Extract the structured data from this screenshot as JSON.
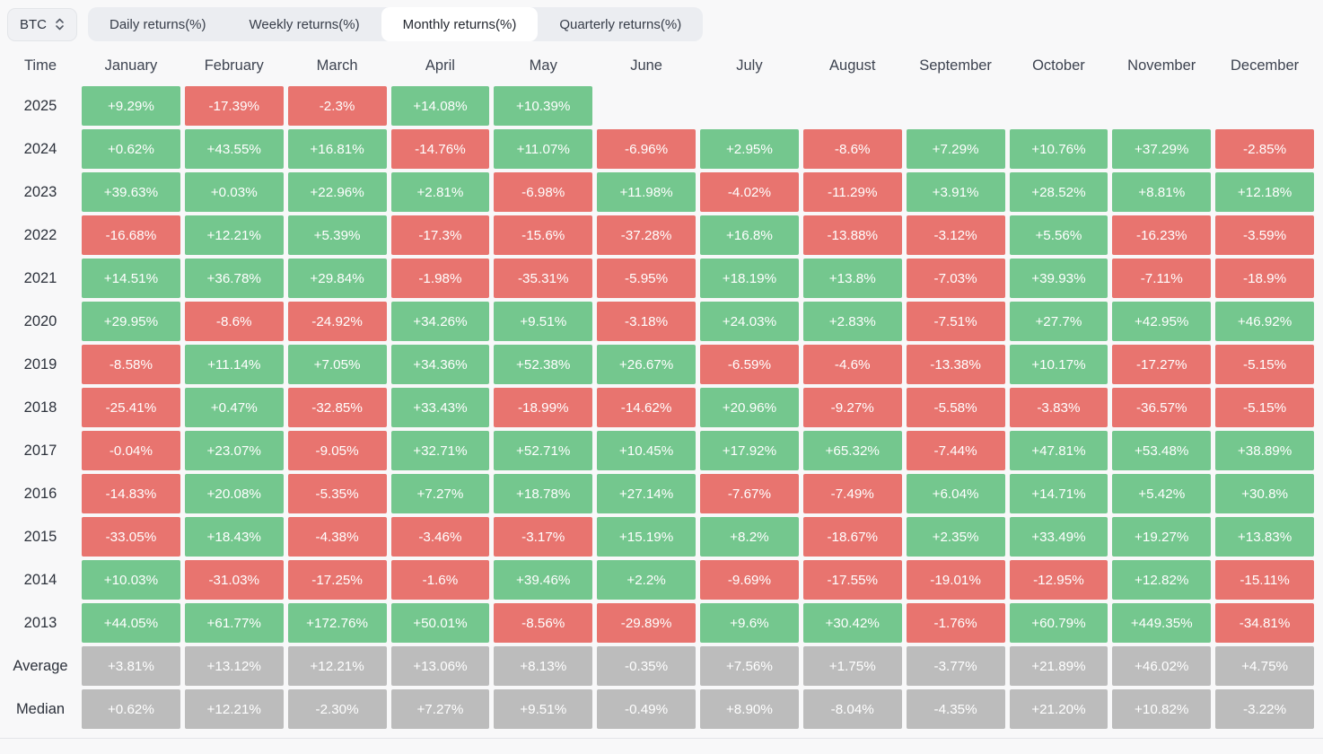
{
  "toolbar": {
    "asset_selector": {
      "label": "BTC"
    },
    "tabs": [
      {
        "label": "Daily returns(%)",
        "active": false
      },
      {
        "label": "Weekly returns(%)",
        "active": false
      },
      {
        "label": "Monthly returns(%)",
        "active": true
      },
      {
        "label": "Quarterly returns(%)",
        "active": false
      }
    ]
  },
  "colors": {
    "positive": "#74c78e",
    "negative": "#e8746f",
    "neutral": "#bcbcbc"
  },
  "chart_data": {
    "type": "heatmap",
    "title": "BTC Monthly returns(%)",
    "columns": [
      "Time",
      "January",
      "February",
      "March",
      "April",
      "May",
      "June",
      "July",
      "August",
      "September",
      "October",
      "November",
      "December"
    ],
    "rows": [
      {
        "label": "2025",
        "style": "signed",
        "values": [
          "+9.29%",
          "-17.39%",
          "-2.3%",
          "+14.08%",
          "+10.39%",
          null,
          null,
          null,
          null,
          null,
          null,
          null
        ]
      },
      {
        "label": "2024",
        "style": "signed",
        "values": [
          "+0.62%",
          "+43.55%",
          "+16.81%",
          "-14.76%",
          "+11.07%",
          "-6.96%",
          "+2.95%",
          "-8.6%",
          "+7.29%",
          "+10.76%",
          "+37.29%",
          "-2.85%"
        ]
      },
      {
        "label": "2023",
        "style": "signed",
        "values": [
          "+39.63%",
          "+0.03%",
          "+22.96%",
          "+2.81%",
          "-6.98%",
          "+11.98%",
          "-4.02%",
          "-11.29%",
          "+3.91%",
          "+28.52%",
          "+8.81%",
          "+12.18%"
        ]
      },
      {
        "label": "2022",
        "style": "signed",
        "values": [
          "-16.68%",
          "+12.21%",
          "+5.39%",
          "-17.3%",
          "-15.6%",
          "-37.28%",
          "+16.8%",
          "-13.88%",
          "-3.12%",
          "+5.56%",
          "-16.23%",
          "-3.59%"
        ]
      },
      {
        "label": "2021",
        "style": "signed",
        "values": [
          "+14.51%",
          "+36.78%",
          "+29.84%",
          "-1.98%",
          "-35.31%",
          "-5.95%",
          "+18.19%",
          "+13.8%",
          "-7.03%",
          "+39.93%",
          "-7.11%",
          "-18.9%"
        ]
      },
      {
        "label": "2020",
        "style": "signed",
        "values": [
          "+29.95%",
          "-8.6%",
          "-24.92%",
          "+34.26%",
          "+9.51%",
          "-3.18%",
          "+24.03%",
          "+2.83%",
          "-7.51%",
          "+27.7%",
          "+42.95%",
          "+46.92%"
        ]
      },
      {
        "label": "2019",
        "style": "signed",
        "values": [
          "-8.58%",
          "+11.14%",
          "+7.05%",
          "+34.36%",
          "+52.38%",
          "+26.67%",
          "-6.59%",
          "-4.6%",
          "-13.38%",
          "+10.17%",
          "-17.27%",
          "-5.15%"
        ]
      },
      {
        "label": "2018",
        "style": "signed",
        "values": [
          "-25.41%",
          "+0.47%",
          "-32.85%",
          "+33.43%",
          "-18.99%",
          "-14.62%",
          "+20.96%",
          "-9.27%",
          "-5.58%",
          "-3.83%",
          "-36.57%",
          "-5.15%"
        ]
      },
      {
        "label": "2017",
        "style": "signed",
        "values": [
          "-0.04%",
          "+23.07%",
          "-9.05%",
          "+32.71%",
          "+52.71%",
          "+10.45%",
          "+17.92%",
          "+65.32%",
          "-7.44%",
          "+47.81%",
          "+53.48%",
          "+38.89%"
        ]
      },
      {
        "label": "2016",
        "style": "signed",
        "values": [
          "-14.83%",
          "+20.08%",
          "-5.35%",
          "+7.27%",
          "+18.78%",
          "+27.14%",
          "-7.67%",
          "-7.49%",
          "+6.04%",
          "+14.71%",
          "+5.42%",
          "+30.8%"
        ]
      },
      {
        "label": "2015",
        "style": "signed",
        "values": [
          "-33.05%",
          "+18.43%",
          "-4.38%",
          "-3.46%",
          "-3.17%",
          "+15.19%",
          "+8.2%",
          "-18.67%",
          "+2.35%",
          "+33.49%",
          "+19.27%",
          "+13.83%"
        ]
      },
      {
        "label": "2014",
        "style": "signed",
        "values": [
          "+10.03%",
          "-31.03%",
          "-17.25%",
          "-1.6%",
          "+39.46%",
          "+2.2%",
          "-9.69%",
          "-17.55%",
          "-19.01%",
          "-12.95%",
          "+12.82%",
          "-15.11%"
        ]
      },
      {
        "label": "2013",
        "style": "signed",
        "values": [
          "+44.05%",
          "+61.77%",
          "+172.76%",
          "+50.01%",
          "-8.56%",
          "-29.89%",
          "+9.6%",
          "+30.42%",
          "-1.76%",
          "+60.79%",
          "+449.35%",
          "-34.81%"
        ]
      },
      {
        "label": "Average",
        "style": "neutral",
        "values": [
          "+3.81%",
          "+13.12%",
          "+12.21%",
          "+13.06%",
          "+8.13%",
          "-0.35%",
          "+7.56%",
          "+1.75%",
          "-3.77%",
          "+21.89%",
          "+46.02%",
          "+4.75%"
        ]
      },
      {
        "label": "Median",
        "style": "neutral",
        "values": [
          "+0.62%",
          "+12.21%",
          "-2.30%",
          "+7.27%",
          "+9.51%",
          "-0.49%",
          "+8.90%",
          "-8.04%",
          "-4.35%",
          "+21.20%",
          "+10.82%",
          "-3.22%"
        ]
      }
    ]
  }
}
